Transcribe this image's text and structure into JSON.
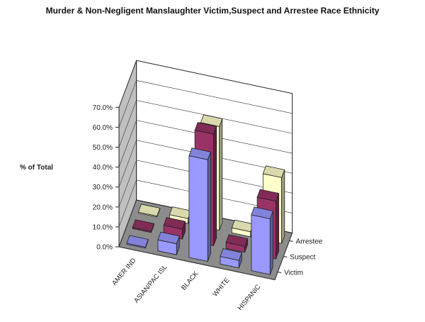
{
  "chart_data": {
    "type": "bar",
    "title": "Murder & Non-Negligent Manslaughter Victim,Suspect and Arrestee Race Ethnicity",
    "ylabel": "% of Total",
    "ylim": [
      0,
      70
    ],
    "y_ticks": [
      "0.0%",
      "10.0%",
      "20.0%",
      "30.0%",
      "40.0%",
      "50.0%",
      "60.0%",
      "70.0%"
    ],
    "categories": [
      "AMER IND",
      "ASIAN/PAC ISL",
      "BLACK",
      "WHITE",
      "HISPANIC"
    ],
    "series": [
      {
        "name": "Victim",
        "values": [
          0.5,
          5.5,
          51.0,
          3.8,
          28.0
        ],
        "color": "#9999ff"
      },
      {
        "name": "Suspect",
        "values": [
          0.6,
          5.0,
          56.0,
          3.0,
          29.0
        ],
        "color": "#993366"
      },
      {
        "name": "Arrestee",
        "values": [
          0.5,
          2.5,
          52.0,
          2.5,
          33.0
        ],
        "color": "#ffffcc"
      }
    ],
    "grid": true,
    "style": "3d-clustered"
  }
}
